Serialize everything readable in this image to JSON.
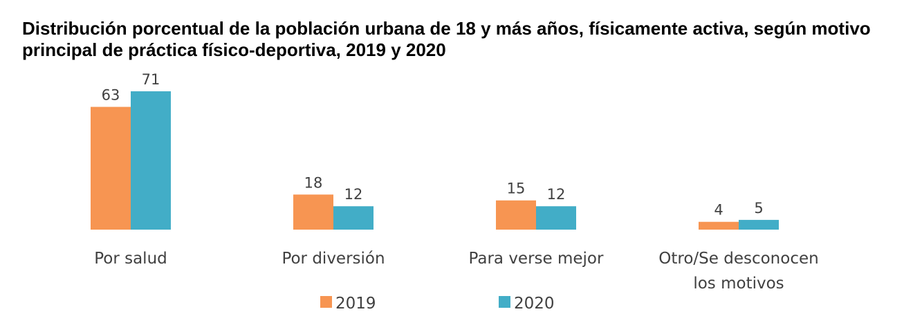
{
  "chart_data": {
    "type": "bar",
    "title": "Distribución porcentual de la población urbana de 18 y más años, físicamente activa, según motivo principal de práctica físico-deportiva, 2019 y 2020",
    "categories": [
      [
        "Por salud"
      ],
      [
        "Por diversión"
      ],
      [
        "Para verse mejor"
      ],
      [
        "Otro/Se desconocen",
        "los motivos"
      ]
    ],
    "series": [
      {
        "name": "2019",
        "color": "#F79552",
        "values": [
          63,
          18,
          15,
          4
        ]
      },
      {
        "name": "2020",
        "color": "#42ADC7",
        "values": [
          71,
          12,
          12,
          5
        ]
      }
    ],
    "ylim": [
      0,
      71
    ],
    "grid": false,
    "legend": "bottom",
    "data_labels": true
  }
}
